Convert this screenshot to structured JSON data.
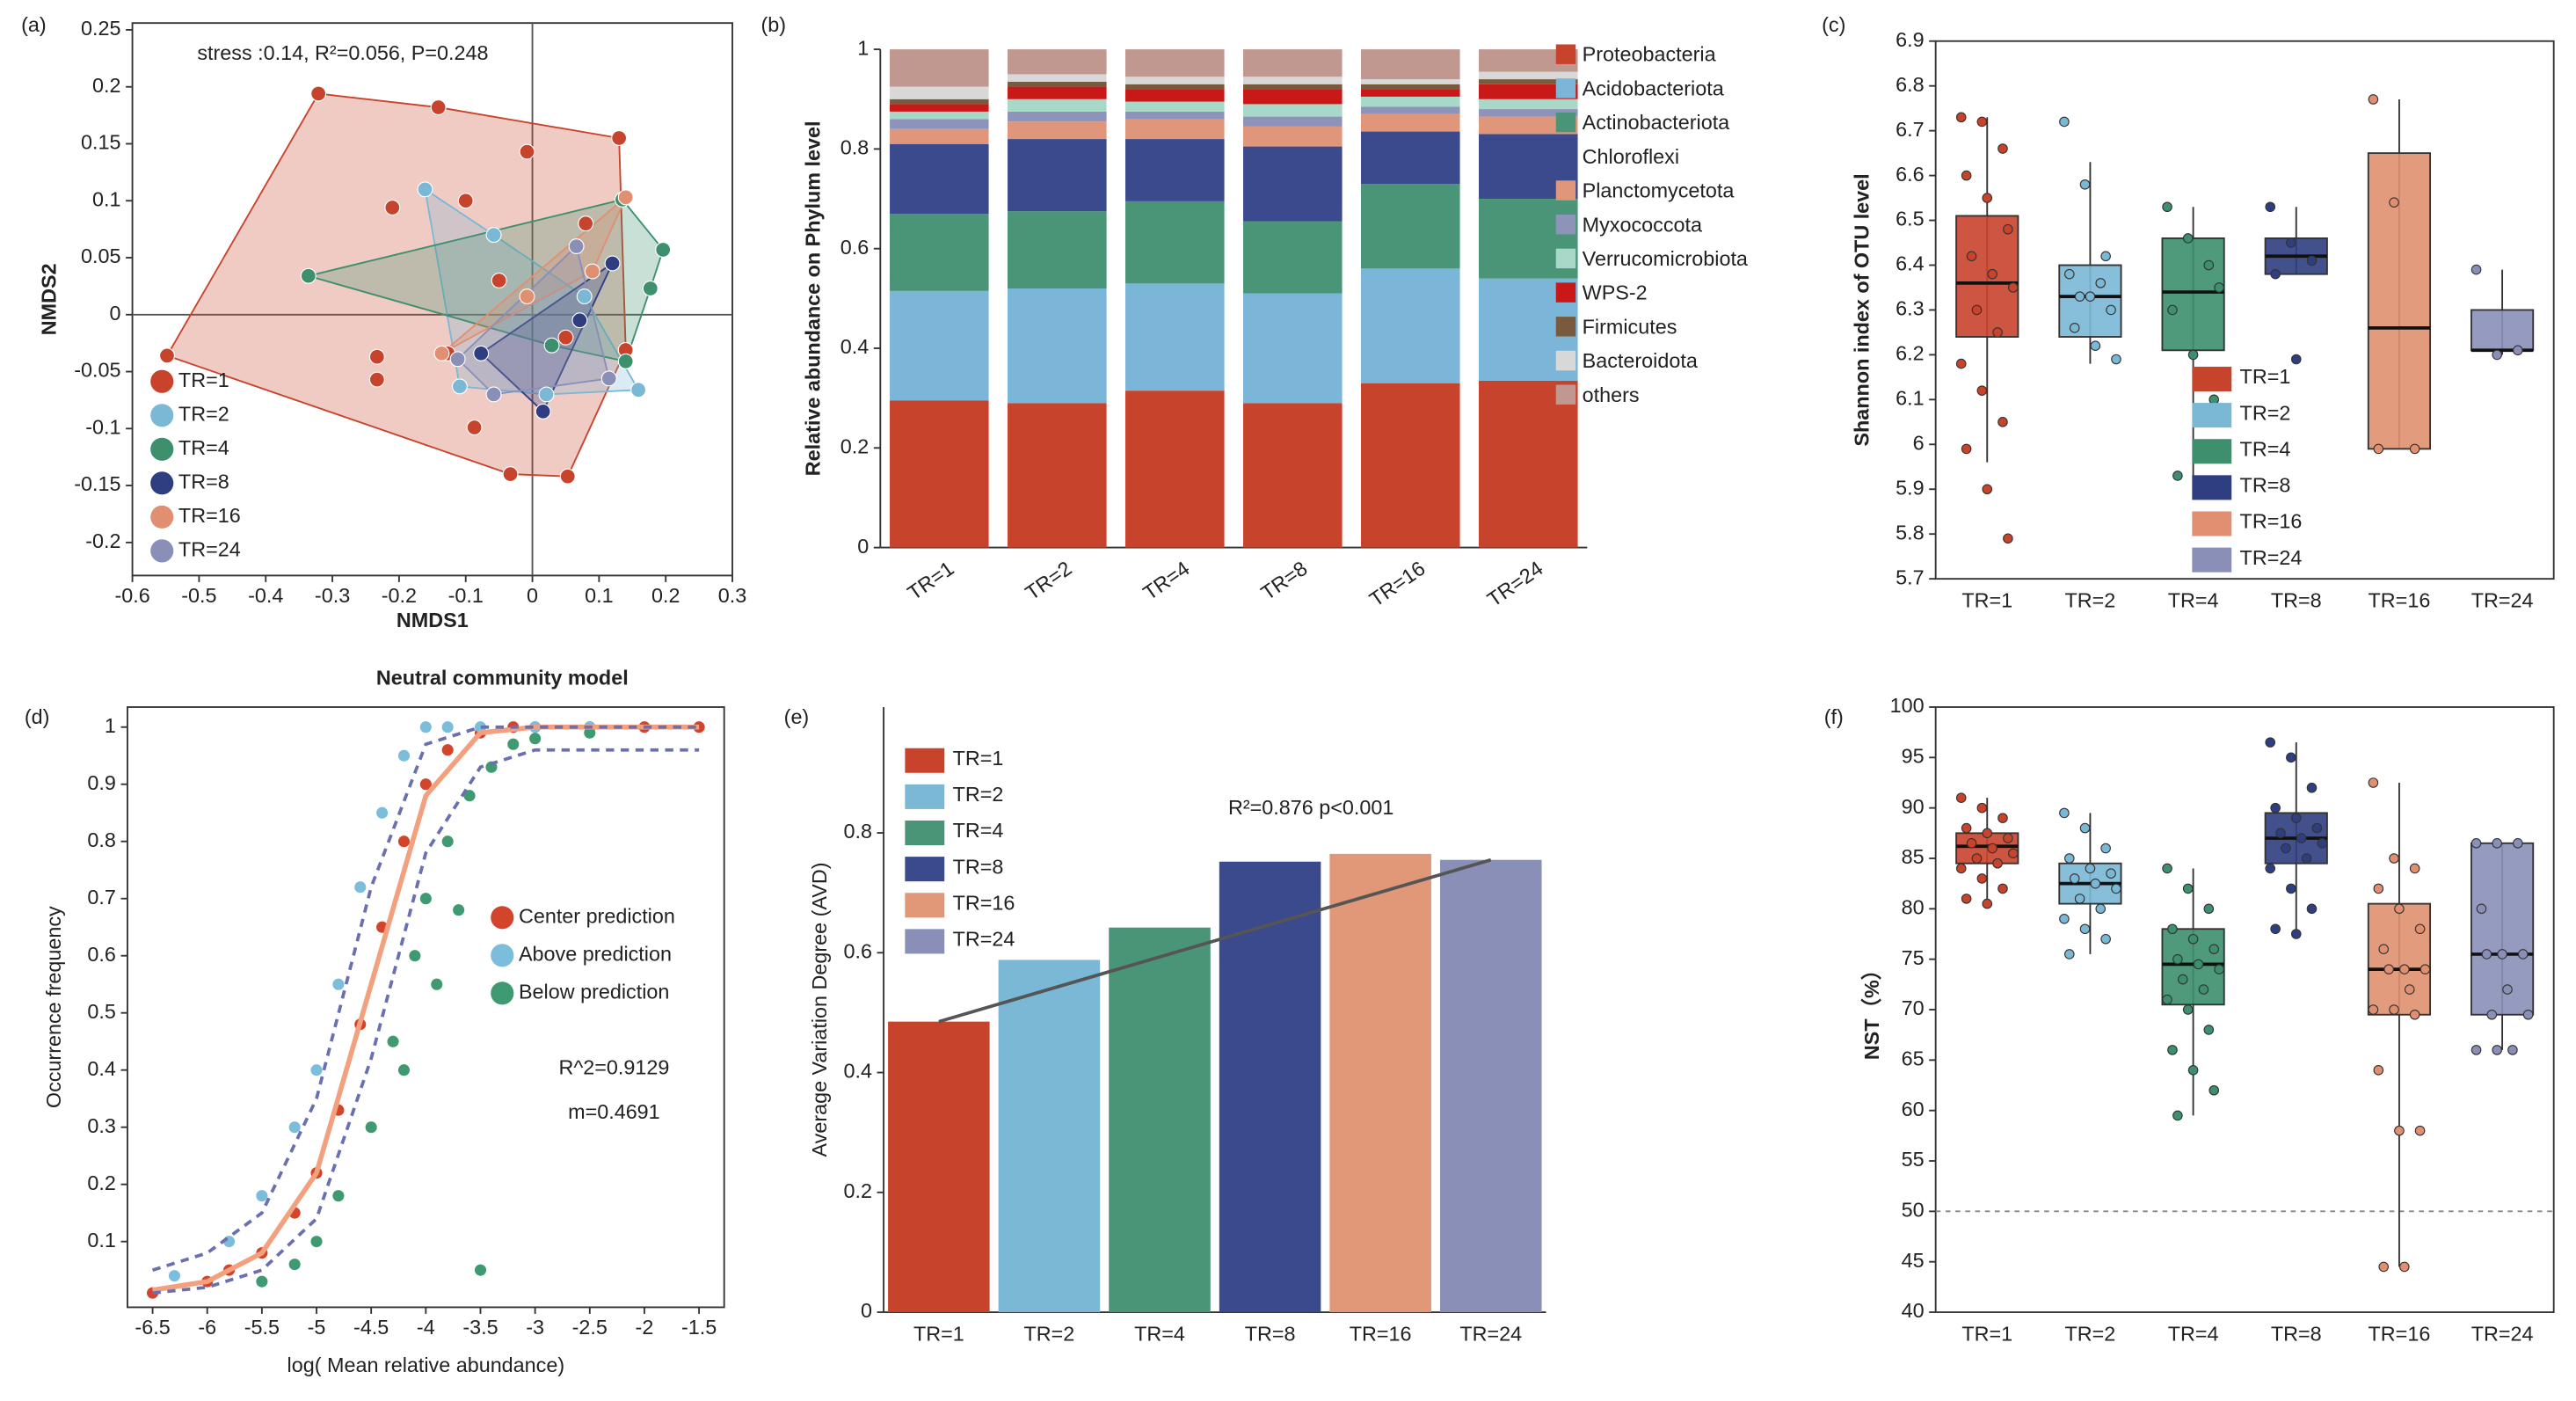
{
  "chart_data": [
    {
      "type": "scatter",
      "label": "(a)",
      "annotation": "stress :0.14, R²=0.056, P=0.248",
      "x_label": "NMDS1",
      "y_label": "NMDS2",
      "hull": true,
      "zero_lines": true,
      "legend": "lower left",
      "xlim": [
        -0.6,
        0.3
      ],
      "ylim": [
        -0.229,
        0.256
      ],
      "xticks": [
        -0.6,
        -0.5,
        -0.4,
        -0.3,
        -0.2,
        -0.1,
        0,
        0.1,
        0.2,
        0.3
      ],
      "yticks": [
        -0.2,
        -0.15,
        -0.1,
        -0.05,
        0,
        0.05,
        0.1,
        0.15,
        0.2,
        0.25
      ],
      "series": [
        {
          "name": "TR=1",
          "color": "#c8432c",
          "x": [
            -0.321,
            -0.141,
            -0.548,
            -0.21,
            -0.233,
            -0.233,
            0.13,
            0.053,
            -0.033,
            -0.008,
            0.14,
            -0.127,
            -0.087,
            -0.05,
            0.08,
            -0.1,
            0.05
          ],
          "values": [
            0.194,
            0.182,
            -0.036,
            0.094,
            -0.037,
            -0.057,
            0.155,
            -0.142,
            -0.14,
            0.143,
            -0.031,
            -0.034,
            -0.099,
            0.03,
            0.08,
            0.1,
            -0.02
          ]
        },
        {
          "name": "TR=2",
          "color": "#7ab8d6",
          "x": [
            -0.161,
            -0.058,
            0.159,
            -0.109,
            0.078,
            0.021
          ],
          "values": [
            0.11,
            0.07,
            -0.066,
            -0.063,
            0.016,
            -0.07
          ]
        },
        {
          "name": "TR=4",
          "color": "#3d8f6e",
          "x": [
            -0.336,
            0.196,
            0.135,
            0.14,
            0.029,
            0.177
          ],
          "values": [
            0.034,
            0.057,
            0.101,
            -0.041,
            -0.027,
            0.023
          ]
        },
        {
          "name": "TR=8",
          "color": "#2e3e80",
          "x": [
            -0.077,
            0.12,
            0.016,
            0.071
          ],
          "values": [
            -0.034,
            0.045,
            -0.085,
            -0.005
          ]
        },
        {
          "name": "TR=16",
          "color": "#e09070",
          "x": [
            0.14,
            -0.136,
            -0.008,
            0.09
          ],
          "values": [
            0.103,
            -0.034,
            0.016,
            0.038
          ]
        },
        {
          "name": "TR=24",
          "color": "#8a8fb8",
          "x": [
            -0.112,
            0.066,
            0.115,
            -0.058
          ],
          "values": [
            -0.039,
            0.06,
            -0.056,
            -0.07
          ]
        }
      ]
    },
    {
      "type": "bar",
      "stacked": true,
      "label": "(b)",
      "y_label": "Relative abundance on Phylum level",
      "legend": "right",
      "categories": [
        "TR=1",
        "TR=2",
        "TR=4",
        "TR=8",
        "TR=16",
        "TR=24"
      ],
      "ylim": [
        0,
        1
      ],
      "yticks": [
        0,
        0.2,
        0.4,
        0.6,
        0.8,
        1
      ],
      "series": [
        {
          "name": "Proteobacteria",
          "color": "#c8432c",
          "values": [
            0.295,
            0.29,
            0.315,
            0.29,
            0.33,
            0.335
          ]
        },
        {
          "name": "Acidobacteriota",
          "color": "#7bb6d8",
          "values": [
            0.22,
            0.23,
            0.215,
            0.22,
            0.23,
            0.205
          ]
        },
        {
          "name": "Actinobacteriota",
          "color": "#4a9478",
          "values": [
            0.155,
            0.155,
            0.165,
            0.145,
            0.17,
            0.16
          ]
        },
        {
          "name": "Chloroflexi",
          "color": "#3b4a8c",
          "values": [
            0.14,
            0.145,
            0.125,
            0.15,
            0.105,
            0.13
          ]
        },
        {
          "name": "Planctomycetota",
          "color": "#e0967a",
          "values": [
            0.03,
            0.035,
            0.04,
            0.04,
            0.035,
            0.035
          ]
        },
        {
          "name": "Myxococcota",
          "color": "#8e93ba",
          "values": [
            0.02,
            0.02,
            0.015,
            0.02,
            0.015,
            0.015
          ]
        },
        {
          "name": "Verrucomicrobiota",
          "color": "#a8d8c8",
          "values": [
            0.015,
            0.025,
            0.02,
            0.025,
            0.02,
            0.02
          ]
        },
        {
          "name": "WPS-2",
          "color": "#c81818",
          "values": [
            0.015,
            0.025,
            0.025,
            0.03,
            0.015,
            0.03
          ]
        },
        {
          "name": "Firmicutes",
          "color": "#7a5a3c",
          "values": [
            0.01,
            0.01,
            0.01,
            0.01,
            0.01,
            0.01
          ]
        },
        {
          "name": "Bacteroidota",
          "color": "#d8d8d8",
          "values": [
            0.025,
            0.015,
            0.015,
            0.015,
            0.01,
            0.015
          ]
        },
        {
          "name": "others",
          "color": "#c09890",
          "values": [
            0.075,
            0.05,
            0.055,
            0.055,
            0.06,
            0.045
          ]
        }
      ]
    },
    {
      "type": "box",
      "label": "(c)",
      "y_label": "Shannon index of OTU level",
      "legend": "inside",
      "categories": [
        "TR=1",
        "TR=2",
        "TR=4",
        "TR=8",
        "TR=16",
        "TR=24"
      ],
      "ylim": [
        5.7,
        6.9
      ],
      "yticks": [
        5.7,
        5.8,
        5.9,
        6,
        6.1,
        6.2,
        6.3,
        6.4,
        6.5,
        6.6,
        6.7,
        6.8,
        6.9
      ],
      "series": [
        {
          "name": "TR=1",
          "color": "#c8432c",
          "box": [
            5.96,
            6.24,
            6.36,
            6.51,
            6.73
          ],
          "points": [
            6.73,
            6.72,
            6.66,
            6.6,
            6.55,
            6.48,
            6.42,
            6.38,
            6.35,
            6.3,
            6.25,
            6.18,
            6.12,
            6.05,
            5.99,
            5.9,
            5.79
          ]
        },
        {
          "name": "TR=2",
          "color": "#7ab8d6",
          "box": [
            6.18,
            6.24,
            6.33,
            6.4,
            6.63
          ],
          "points": [
            6.72,
            6.58,
            6.42,
            6.38,
            6.33,
            6.3,
            6.26,
            6.22,
            6.19,
            6.33,
            6.36
          ]
        },
        {
          "name": "TR=4",
          "color": "#3d8f6e",
          "box": [
            5.9,
            6.21,
            6.34,
            6.46,
            6.53
          ],
          "points": [
            6.53,
            6.46,
            6.4,
            6.3,
            6.2,
            6.1,
            5.93,
            5.9,
            6.35
          ]
        },
        {
          "name": "TR=8",
          "color": "#2e3e80",
          "box": [
            6.38,
            6.38,
            6.42,
            6.46,
            6.53
          ],
          "points": [
            6.53,
            6.45,
            6.41,
            6.38,
            6.19
          ]
        },
        {
          "name": "TR=16",
          "color": "#e09070",
          "box": [
            5.99,
            5.99,
            6.26,
            6.65,
            6.77
          ],
          "points": [
            6.77,
            6.54,
            5.99,
            5.99
          ]
        },
        {
          "name": "TR=24",
          "color": "#8a8fb8",
          "box": [
            6.2,
            6.21,
            6.21,
            6.3,
            6.39
          ],
          "points": [
            6.39,
            6.2,
            6.21
          ]
        }
      ]
    },
    {
      "type": "scatter",
      "label": "(d)",
      "title": "Neutral community model",
      "x_label": "log( Mean relative abundance)",
      "y_label": "Occurrence frequency",
      "annotations": [
        "R^2=0.9129",
        "m=0.4691"
      ],
      "legend": "right",
      "xlim": [
        -6.73,
        -1.27
      ],
      "ylim": [
        -0.015,
        1.035
      ],
      "xticks": [
        -6.5,
        -6,
        -5.5,
        -5,
        -4.5,
        -4,
        -3.5,
        -3,
        -2.5,
        -2,
        -1.5
      ],
      "yticks": [
        0.1,
        0.2,
        0.3,
        0.4,
        0.5,
        0.6,
        0.7,
        0.8,
        0.9,
        1
      ],
      "series": [
        {
          "name": "Center prediction",
          "color": "#d2452c",
          "x": [
            -6.5,
            -6,
            -5.8,
            -5.5,
            -5.2,
            -5,
            -4.8,
            -4.6,
            -4.4,
            -4.2,
            -4,
            -3.8,
            -3.5,
            -3.2,
            -3,
            -2.5,
            -2,
            -1.5
          ],
          "values": [
            0.01,
            0.03,
            0.05,
            0.08,
            0.15,
            0.22,
            0.33,
            0.48,
            0.65,
            0.8,
            0.9,
            0.96,
            0.99,
            1,
            1,
            1,
            1,
            1
          ]
        },
        {
          "name": "Above prediction",
          "color": "#7bbddb",
          "x": [
            -6.3,
            -5.8,
            -5.5,
            -5.2,
            -5,
            -4.8,
            -4.6,
            -4.4,
            -4.2,
            -4,
            -3.8,
            -3.5,
            -3,
            -2.5
          ],
          "values": [
            0.04,
            0.1,
            0.18,
            0.3,
            0.4,
            0.55,
            0.72,
            0.85,
            0.95,
            1,
            1,
            1,
            1,
            1
          ]
        },
        {
          "name": "Below prediction",
          "color": "#3f9a72",
          "x": [
            -5.5,
            -5.2,
            -5,
            -4.8,
            -4.5,
            -4.3,
            -4.1,
            -4,
            -3.8,
            -3.6,
            -3.5,
            -3.4,
            -3.2,
            -3,
            -2.5,
            -4.2,
            -3.9,
            -3.7
          ],
          "values": [
            0.03,
            0.06,
            0.1,
            0.18,
            0.3,
            0.45,
            0.6,
            0.7,
            0.8,
            0.88,
            0.05,
            0.93,
            0.97,
            0.98,
            0.99,
            0.4,
            0.55,
            0.68
          ]
        },
        {
          "line": "solid",
          "color": "#f2a07e",
          "x": [
            -6.5,
            -6,
            -5.5,
            -5,
            -4.5,
            -4,
            -3.5,
            -3,
            -2.5,
            -2,
            -1.5
          ],
          "values": [
            0.015,
            0.03,
            0.08,
            0.22,
            0.55,
            0.88,
            0.99,
            1,
            1,
            1,
            1
          ]
        },
        {
          "line": "dashed",
          "color": "#6a6fb0",
          "x": [
            -6.5,
            -6,
            -5.5,
            -5,
            -4.5,
            -4,
            -3.5,
            -3,
            -2.5,
            -2,
            -1.5
          ],
          "values": [
            0.05,
            0.08,
            0.15,
            0.35,
            0.72,
            0.97,
            1,
            1,
            1,
            1,
            1
          ]
        },
        {
          "line": "dashed",
          "color": "#6a6fb0",
          "x": [
            -6.5,
            -6,
            -5.5,
            -5,
            -4.5,
            -4,
            -3.5,
            -3,
            -2.5,
            -2,
            -1.5
          ],
          "values": [
            0.01,
            0.02,
            0.05,
            0.14,
            0.42,
            0.78,
            0.93,
            0.96,
            0.96,
            0.96,
            0.96
          ]
        }
      ]
    },
    {
      "type": "bar",
      "label": "(e)",
      "y_label": "Average Variation Degree (AVD)",
      "annotation": "R²=0.876 p<0.001",
      "legend": "upper left",
      "categories": [
        "TR=1",
        "TR=2",
        "TR=4",
        "TR=8",
        "TR=16",
        "TR=24"
      ],
      "values": [
        0.485,
        0.588,
        0.642,
        0.752,
        0.765,
        0.755
      ],
      "colors": [
        "#c8432c",
        "#7ab8d6",
        "#4a9478",
        "#3b4a8c",
        "#e09878",
        "#8a8fb8"
      ],
      "trend_line": [
        0.485,
        0.755
      ],
      "trend_color": "#555555",
      "ylim": [
        0,
        1.01
      ],
      "yticks": [
        0,
        0.2,
        0.4,
        0.6,
        0.8
      ]
    },
    {
      "type": "box",
      "label": "(f)",
      "y_label": "NST（%）",
      "reference_line": 50,
      "categories": [
        "TR=1",
        "TR=2",
        "TR=4",
        "TR=8",
        "TR=16",
        "TR=24"
      ],
      "ylim": [
        40,
        100
      ],
      "yticks": [
        40,
        45,
        50,
        55,
        60,
        65,
        70,
        75,
        80,
        85,
        90,
        95,
        100
      ],
      "series": [
        {
          "color": "#c8432c",
          "box": [
            80.5,
            84.5,
            86.2,
            87.5,
            91
          ],
          "points": [
            91,
            90,
            89,
            88,
            87.5,
            87,
            86.5,
            86,
            85.5,
            85,
            84.5,
            84,
            83,
            82,
            81,
            80.5
          ]
        },
        {
          "color": "#7ab8d6",
          "box": [
            75.5,
            80.5,
            82.5,
            84.5,
            89.5
          ],
          "points": [
            89.5,
            88,
            86,
            85,
            84,
            83.5,
            83,
            82.5,
            82,
            81,
            80,
            79,
            78,
            77,
            75.5
          ]
        },
        {
          "color": "#3d8f6e",
          "box": [
            59.5,
            70.5,
            74.5,
            78,
            84
          ],
          "points": [
            84,
            82,
            80,
            78,
            77,
            76,
            75,
            74.5,
            74,
            73,
            72,
            71,
            70,
            68,
            66,
            64,
            62,
            59.5
          ]
        },
        {
          "color": "#2e3e80",
          "box": [
            77.5,
            84.5,
            87,
            89.5,
            96.5
          ],
          "points": [
            96.5,
            95,
            92,
            90,
            89,
            88,
            87.5,
            87,
            86.5,
            86,
            85,
            84,
            82,
            80,
            78,
            77.5
          ]
        },
        {
          "color": "#e09070",
          "box": [
            44.5,
            69.5,
            74,
            80.5,
            92.5
          ],
          "points": [
            92.5,
            85,
            84,
            82,
            80,
            78,
            76,
            74,
            74,
            74,
            72,
            70,
            70,
            69.5,
            64,
            58,
            58,
            44.5,
            44.5
          ]
        },
        {
          "color": "#8a8fb8",
          "box": [
            66,
            69.5,
            75.5,
            86.5,
            86.5
          ],
          "points": [
            86.5,
            86.5,
            86.5,
            80,
            75.5,
            75.5,
            75.5,
            72,
            69.5,
            69.5,
            66,
            66,
            66
          ]
        }
      ]
    }
  ]
}
